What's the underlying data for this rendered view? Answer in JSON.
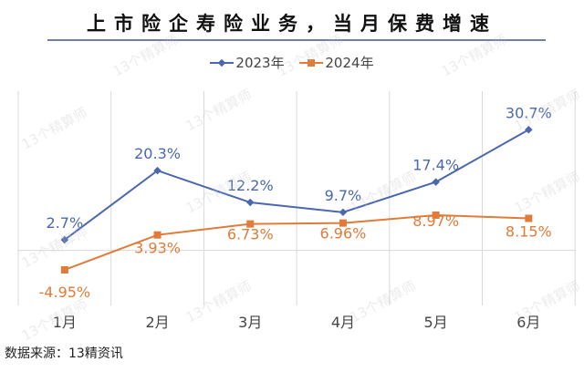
{
  "chart_data": {
    "type": "line",
    "title": "上市险企寿险业务，当月保费增速",
    "categories": [
      "1月",
      "2月",
      "3月",
      "4月",
      "5月",
      "6月"
    ],
    "series": [
      {
        "name": "2023年",
        "color": "#4a68b0",
        "marker": "diamond",
        "values": [
          2.7,
          20.3,
          12.2,
          9.7,
          17.4,
          30.7
        ],
        "labels": [
          "2.7%",
          "20.3%",
          "12.2%",
          "9.7%",
          "17.4%",
          "30.7%"
        ]
      },
      {
        "name": "2024年",
        "color": "#e07b39",
        "marker": "square",
        "values": [
          -4.95,
          3.93,
          6.73,
          6.96,
          8.97,
          8.15
        ],
        "labels": [
          "-4.95%",
          "3.93%",
          "6.73%",
          "6.96%",
          "8.97%",
          "8.15%"
        ]
      }
    ],
    "ylim": [
      -14,
      40.5
    ],
    "legend": "top-center",
    "grid": "vertical category separators",
    "xlabel": "",
    "ylabel": ""
  },
  "source": "数据来源：13精资讯",
  "watermark": "13个精算师"
}
